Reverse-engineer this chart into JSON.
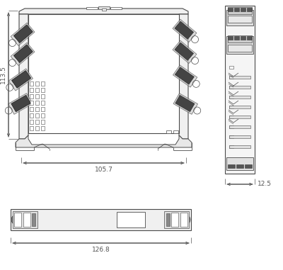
{
  "bg_color": "#ffffff",
  "line_color": "#4a4a4a",
  "dim_color": "#555555",
  "fig_width": 4.0,
  "fig_height": 3.81,
  "dpi": 100,
  "dim_113_5": "113.5",
  "dim_105_7": "105.7",
  "dim_12_5": "12.5",
  "dim_126_8": "126.8"
}
